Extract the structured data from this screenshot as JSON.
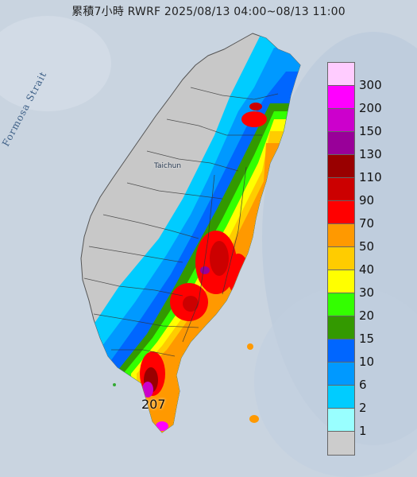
{
  "title": "累積7小時 RWRF 2025/08/13 04:00~08/13 11:00",
  "map_labels": {
    "strait": "Formosa Strait",
    "city": "Taichun",
    "max_value": "207"
  },
  "legend": [
    {
      "label": "300",
      "color": "#ffccff"
    },
    {
      "label": "200",
      "color": "#ff00ff"
    },
    {
      "label": "150",
      "color": "#cc00cc"
    },
    {
      "label": "130",
      "color": "#990099"
    },
    {
      "label": "110",
      "color": "#990000"
    },
    {
      "label": "90",
      "color": "#cc0000"
    },
    {
      "label": "70",
      "color": "#ff0000"
    },
    {
      "label": "50",
      "color": "#ff9900"
    },
    {
      "label": "40",
      "color": "#ffcc00"
    },
    {
      "label": "30",
      "color": "#ffff00"
    },
    {
      "label": "20",
      "color": "#33ff00"
    },
    {
      "label": "15",
      "color": "#339900"
    },
    {
      "label": "10",
      "color": "#0066ff"
    },
    {
      "label": "6",
      "color": "#0099ff"
    },
    {
      "label": "2",
      "color": "#00ccff"
    },
    {
      "label": "1",
      "color": "#99ffff"
    },
    {
      "label": "",
      "color": "#cccccc"
    }
  ]
}
